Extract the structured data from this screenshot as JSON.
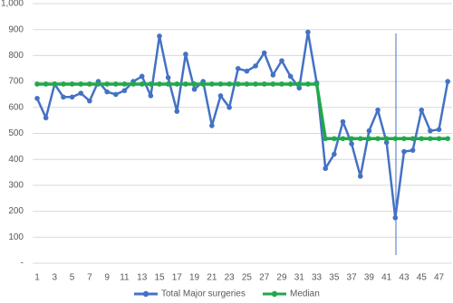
{
  "chart_data": {
    "type": "line",
    "categories": [
      1,
      null,
      3,
      null,
      5,
      null,
      7,
      null,
      9,
      null,
      11,
      null,
      13,
      null,
      15,
      null,
      17,
      null,
      19,
      null,
      21,
      null,
      23,
      null,
      25,
      null,
      27,
      null,
      29,
      null,
      31,
      null,
      33,
      null,
      35,
      null,
      37,
      null,
      39,
      null,
      41,
      null,
      43,
      null,
      45,
      null,
      47,
      null
    ],
    "series": [
      {
        "name": "Total Major surgeries",
        "color": "#4472c4",
        "values": [
          635,
          560,
          690,
          640,
          640,
          655,
          625,
          700,
          660,
          650,
          665,
          700,
          720,
          645,
          875,
          715,
          585,
          805,
          670,
          700,
          530,
          645,
          600,
          750,
          740,
          760,
          810,
          725,
          780,
          720,
          675,
          890,
          695,
          365,
          420,
          545,
          460,
          335,
          510,
          590,
          465,
          175,
          430,
          435,
          590,
          510,
          515,
          700
        ]
      },
      {
        "name": "Median",
        "color": "#21a84a",
        "values": [
          690,
          690,
          690,
          690,
          690,
          690,
          690,
          690,
          690,
          690,
          690,
          690,
          690,
          690,
          690,
          690,
          690,
          690,
          690,
          690,
          690,
          690,
          690,
          690,
          690,
          690,
          690,
          690,
          690,
          690,
          690,
          690,
          690,
          480,
          480,
          480,
          480,
          480,
          480,
          480,
          480,
          480,
          480,
          480,
          480,
          480,
          480,
          480
        ]
      }
    ],
    "ylim": [
      0,
      1000
    ],
    "yticks": [
      {
        "value": 0,
        "label": "-"
      },
      100,
      200,
      300,
      400,
      500,
      600,
      700,
      800,
      900,
      {
        "value": 1000,
        "label": "1,000"
      }
    ],
    "grid": true,
    "legend": "bottom"
  }
}
